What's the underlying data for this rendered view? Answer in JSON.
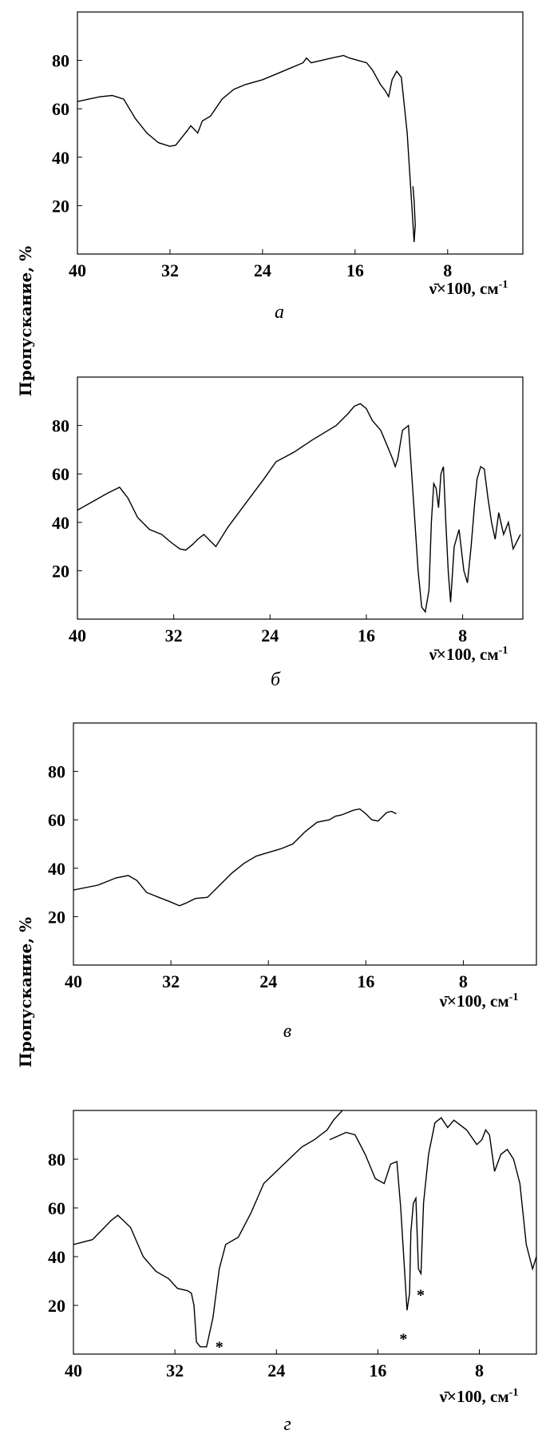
{
  "y_axis_label": "Пропускание, %",
  "chart_data": [
    {
      "type": "line",
      "caption": "а",
      "x_axis_label": "ν̄×100, см-1",
      "x_range": [
        40,
        1.5
      ],
      "y_range": [
        0,
        100
      ],
      "x_ticks": [
        40,
        32,
        24,
        16,
        8
      ],
      "y_ticks": [
        20,
        40,
        60,
        80
      ],
      "series": [
        {
          "x": [
            40,
            38,
            37,
            36,
            35,
            34,
            33,
            32,
            31.5,
            31,
            30.5,
            30.2,
            30,
            29.6,
            29.2,
            28.5,
            27.5,
            26.5,
            25.5,
            24,
            23,
            21.5,
            20.5,
            20.2,
            19.8,
            18,
            17,
            16.5,
            15,
            14.5,
            13.8,
            13.4,
            13.1,
            12.8,
            12.4,
            12,
            11.5,
            11.1,
            10.9,
            10.8,
            10.9,
            11.0
          ],
          "y": [
            63,
            65,
            65.5,
            64,
            56,
            50,
            46,
            44.5,
            45,
            48,
            51,
            53,
            52,
            50,
            55,
            57,
            64,
            68,
            70,
            72,
            74,
            77,
            79,
            81,
            79,
            81,
            82,
            81,
            79,
            76,
            70,
            67.5,
            65,
            72,
            75.5,
            73,
            50,
            20,
            5,
            12,
            22,
            28
          ]
        }
      ]
    },
    {
      "type": "line",
      "caption": "б",
      "x_axis_label": "ν̄×100, см-1",
      "x_range": [
        40,
        3
      ],
      "y_range": [
        0,
        100
      ],
      "x_ticks": [
        40,
        32,
        24,
        16,
        8
      ],
      "y_ticks": [
        20,
        40,
        60,
        80
      ],
      "series": [
        {
          "x": [
            40,
            37.5,
            36.5,
            35.8,
            35,
            34,
            33,
            32.3,
            31.5,
            31,
            30.4,
            30,
            29.5,
            28.5,
            27.5,
            26,
            24.5,
            23.5,
            22,
            20.5,
            18.5,
            17.5,
            17,
            16.5,
            16,
            15.5,
            14.8,
            14.3,
            13.8,
            13.6,
            13.4,
            13,
            12.5,
            12.1,
            11.7,
            11.4,
            11.1,
            10.8,
            10.6,
            10.4,
            10.2,
            10.0,
            9.8,
            9.6,
            9.4,
            9.2,
            9.0,
            8.7,
            8.3,
            7.9,
            7.6,
            7.3,
            7.0,
            6.8,
            6.5,
            6.2,
            5.9,
            5.6,
            5.3,
            5.0,
            4.6,
            4.2,
            3.8,
            3.2
          ],
          "y": [
            45,
            52,
            54.5,
            50,
            42,
            37,
            35,
            32,
            29,
            28.5,
            31,
            33,
            35,
            30,
            38,
            48,
            58,
            65,
            69,
            74,
            80,
            85,
            88,
            89,
            87,
            82,
            78,
            72,
            66,
            63,
            66,
            78,
            80,
            50,
            20,
            5,
            3,
            12,
            40,
            56,
            54,
            46,
            60,
            63,
            40,
            20,
            7,
            30,
            37,
            20,
            15,
            30,
            48,
            58,
            63,
            62,
            50,
            40,
            33,
            44,
            35,
            40,
            29,
            35
          ]
        }
      ]
    },
    {
      "type": "line",
      "caption": "в",
      "x_axis_label": "ν̄×100, см-1",
      "x_range": [
        40,
        2
      ],
      "y_range": [
        0,
        100
      ],
      "x_ticks": [
        40,
        32,
        24,
        16,
        8
      ],
      "y_ticks": [
        20,
        40,
        60,
        80
      ],
      "series": [
        {
          "x": [
            40,
            38,
            36.5,
            35.5,
            34.8,
            34,
            33,
            32,
            31.3,
            30.8,
            30,
            29,
            28,
            27,
            26,
            25,
            24,
            23,
            22,
            21,
            20,
            19,
            18.5,
            18,
            17,
            16.5,
            16,
            15.5,
            15,
            14.7,
            14.3,
            13.9,
            13.5
          ],
          "y": [
            31,
            33,
            36,
            37,
            35,
            30,
            28,
            26,
            24.5,
            25.5,
            27.5,
            28,
            33,
            38,
            42,
            45,
            46.5,
            48,
            50,
            55,
            59,
            60,
            61.5,
            62,
            64,
            64.5,
            62.5,
            60,
            59.5,
            61,
            63,
            63.5,
            62.5
          ]
        }
      ]
    },
    {
      "type": "line",
      "caption": "г",
      "x_axis_label": "ν̄×100, см-1",
      "x_range": [
        40,
        3.5
      ],
      "y_range": [
        0,
        100
      ],
      "x_ticks": [
        40,
        32,
        24,
        16,
        8
      ],
      "y_ticks": [
        20,
        40,
        60,
        80
      ],
      "annotations": [
        "*",
        "*",
        "*"
      ],
      "series": [
        {
          "x": [
            40,
            38.5,
            37,
            36.5,
            35.5,
            34.5,
            33.5,
            32.5,
            31.8,
            31,
            30.7,
            30.5,
            30.3,
            30.0,
            29.5,
            29,
            28.5,
            28,
            27,
            26,
            25,
            24,
            23,
            22,
            21,
            20,
            19.5,
            18.8
          ],
          "y": [
            45,
            47,
            55,
            57,
            52,
            40,
            34,
            31,
            27,
            26,
            25,
            20,
            5,
            3,
            3,
            15,
            35,
            45,
            48,
            58,
            70,
            75,
            80,
            85,
            88,
            92,
            96,
            100
          ]
        },
        {
          "x": [
            19.8,
            18.5,
            17.8,
            17,
            16.2,
            15.5,
            15,
            14.5,
            14.2,
            13.9,
            13.7,
            13.5,
            13.4,
            13.2,
            13.0,
            12.8,
            12.6,
            12.4,
            12.0,
            11.5,
            11.0,
            10.5,
            10,
            9,
            8.2,
            7.8,
            7.5,
            7.2,
            6.8,
            6.3,
            5.8,
            5.3,
            4.8,
            4.3,
            3.8,
            3.5
          ],
          "y": [
            88,
            91,
            90,
            82,
            72,
            70,
            78,
            79,
            60,
            35,
            18,
            25,
            50,
            62,
            64,
            35,
            33,
            62,
            82,
            95,
            97,
            93,
            96,
            92,
            86,
            88,
            92,
            90,
            75,
            82,
            84,
            80,
            70,
            45,
            35,
            40
          ]
        }
      ]
    }
  ]
}
